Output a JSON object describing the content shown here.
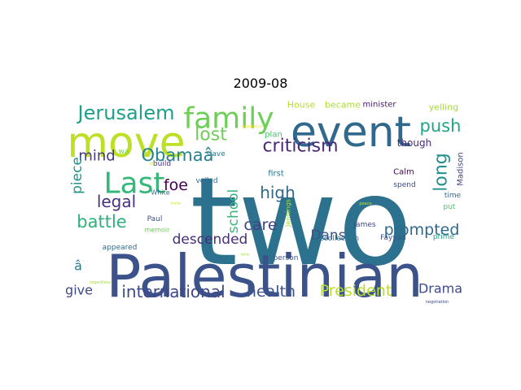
{
  "chart_data": {
    "type": "wordcloud",
    "title": "2009-08",
    "words": [
      {
        "text": "two",
        "color": "#2c728e"
      },
      {
        "text": "Palestinian",
        "color": "#3b528b"
      },
      {
        "text": "event",
        "color": "#31688e"
      },
      {
        "text": "move",
        "color": "#bddf26"
      },
      {
        "text": "family",
        "color": "#6ece58"
      },
      {
        "text": "Last",
        "color": "#35b779"
      },
      {
        "text": "Jerusalem",
        "color": "#1f9e89"
      },
      {
        "text": "lost",
        "color": "#6ece58"
      },
      {
        "text": "criticism",
        "color": "#482878"
      },
      {
        "text": "push",
        "color": "#20a486"
      },
      {
        "text": "long",
        "color": "#21918c"
      },
      {
        "text": "Obamaâ",
        "color": "#26828e"
      },
      {
        "text": "mind",
        "color": "#443983"
      },
      {
        "text": "piece",
        "color": "#21918c"
      },
      {
        "text": "legal",
        "color": "#46327e"
      },
      {
        "text": "foe",
        "color": "#440154"
      },
      {
        "text": "battle",
        "color": "#2db27d"
      },
      {
        "text": "school",
        "color": "#35b779"
      },
      {
        "text": "high",
        "color": "#31688e"
      },
      {
        "text": "care",
        "color": "#414487"
      },
      {
        "text": "Dans",
        "color": "#3b528b"
      },
      {
        "text": "prompted",
        "color": "#31688e"
      },
      {
        "text": "descended",
        "color": "#472d7b"
      },
      {
        "text": "international",
        "color": "#3e4989"
      },
      {
        "text": "health",
        "color": "#3b528b"
      },
      {
        "text": "President",
        "color": "#b5de2b"
      },
      {
        "text": "give",
        "color": "#3e4989"
      },
      {
        "text": "Drama",
        "color": "#3e4989"
      },
      {
        "text": "â",
        "color": "#287c8e"
      },
      {
        "text": "though",
        "color": "#482878"
      },
      {
        "text": "Madison",
        "color": "#414487"
      },
      {
        "text": "House",
        "color": "#b5de2b"
      },
      {
        "text": "became",
        "color": "#addc30"
      },
      {
        "text": "minister",
        "color": "#481a6c"
      },
      {
        "text": "yelling",
        "color": "#a5db36"
      },
      {
        "text": "apparatus",
        "color": "#fde725"
      },
      {
        "text": "plan",
        "color": "#4ac16d"
      },
      {
        "text": "wa",
        "color": "#7ad151"
      },
      {
        "text": "build",
        "color": "#46327e"
      },
      {
        "text": "year",
        "color": "#c8e020"
      },
      {
        "text": "slave",
        "color": "#2a788e"
      },
      {
        "text": "first",
        "color": "#2a788e"
      },
      {
        "text": "veiled",
        "color": "#31688e"
      },
      {
        "text": "White",
        "color": "#306a8e"
      },
      {
        "text": "Paul",
        "color": "#3b528b"
      },
      {
        "text": "memoir",
        "color": "#6ece58"
      },
      {
        "text": "appeared",
        "color": "#31688e"
      },
      {
        "text": "Jennings",
        "color": "#a0da39"
      },
      {
        "text": "James",
        "color": "#3e4989"
      },
      {
        "text": "recollection",
        "color": "#2c728e"
      },
      {
        "text": "Fayyad",
        "color": "#3b528b"
      },
      {
        "text": "person",
        "color": "#3b528b"
      },
      {
        "text": "Calm",
        "color": "#440154"
      },
      {
        "text": "spend",
        "color": "#3e4989"
      },
      {
        "text": "time",
        "color": "#31688e"
      },
      {
        "text": "put",
        "color": "#4ac16d"
      },
      {
        "text": "prime",
        "color": "#1fa188"
      },
      {
        "text": "peace",
        "color": "#d0e11c"
      },
      {
        "text": "regardless",
        "color": "#a5db36"
      },
      {
        "text": "liable",
        "color": "#addc30"
      },
      {
        "text": "negotiation",
        "color": "#3e4989"
      },
      {
        "text": "Arabia",
        "color": "#d8e219"
      }
    ]
  }
}
